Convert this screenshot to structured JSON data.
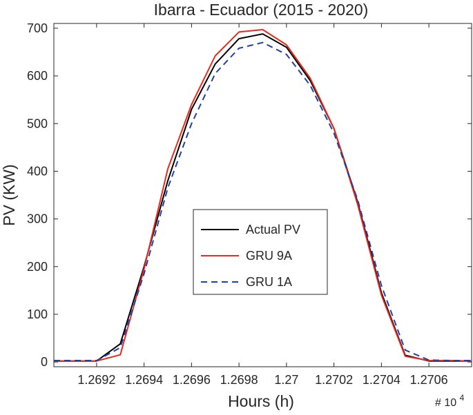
{
  "chart_data": {
    "type": "line",
    "title": "Ibarra - Ecuador (2015 - 2020)",
    "xlabel": "Hours (h)",
    "ylabel": "PV (KW)",
    "x_exponent_label": "# 10",
    "x_exponent_power": "4",
    "xlim": [
      12690.2,
      12707.8
    ],
    "ylim": [
      -10,
      710
    ],
    "x_ticks": [
      12692,
      12694,
      12696,
      12698,
      12700,
      12702,
      12704,
      12706
    ],
    "x_tick_labels": [
      "1.2692",
      "1.2694",
      "1.2696",
      "1.2698",
      "1.27",
      "1.2702",
      "1.2704",
      "1.2706"
    ],
    "y_ticks": [
      0,
      100,
      200,
      300,
      400,
      500,
      600,
      700
    ],
    "y_tick_labels": [
      "0",
      "100",
      "200",
      "300",
      "400",
      "500",
      "600",
      "700"
    ],
    "grid": false,
    "legend_position": "center",
    "x": [
      12690.2,
      12691,
      12692,
      12693,
      12694,
      12695,
      12696,
      12697,
      12698,
      12699,
      12700,
      12701,
      12702,
      12703,
      12704,
      12705,
      12706,
      12707,
      12707.8
    ],
    "series": [
      {
        "name": "Actual PV",
        "color": "#000000",
        "style": "solid",
        "values": [
          2,
          2,
          2,
          38,
          200,
          380,
          530,
          625,
          678,
          688,
          660,
          590,
          490,
          335,
          145,
          14,
          2,
          2,
          2
        ]
      },
      {
        "name": "GRU 9A",
        "color": "#e8291c",
        "style": "solid",
        "values": [
          2,
          2,
          2,
          15,
          195,
          405,
          540,
          642,
          692,
          697,
          665,
          595,
          490,
          330,
          140,
          12,
          3,
          3,
          2
        ]
      },
      {
        "name": "GRU 1A",
        "color": "#1f3fa8",
        "style": "dashed",
        "values": [
          3,
          3,
          3,
          30,
          185,
          365,
          500,
          605,
          658,
          670,
          645,
          580,
          480,
          340,
          160,
          25,
          4,
          3,
          3
        ]
      }
    ]
  }
}
